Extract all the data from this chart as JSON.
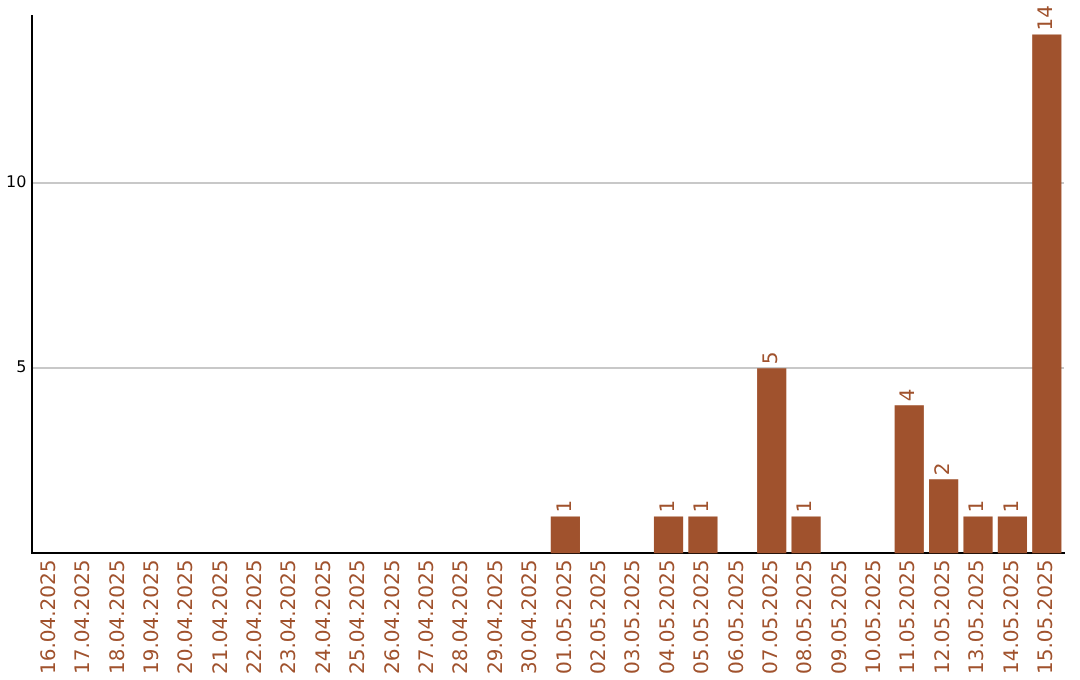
{
  "chart_data": {
    "type": "bar",
    "categories": [
      "16.04.2025",
      "17.04.2025",
      "18.04.2025",
      "19.04.2025",
      "20.04.2025",
      "21.04.2025",
      "22.04.2025",
      "23.04.2025",
      "24.04.2025",
      "25.04.2025",
      "26.04.2025",
      "27.04.2025",
      "28.04.2025",
      "29.04.2025",
      "30.04.2025",
      "01.05.2025",
      "02.05.2025",
      "03.05.2025",
      "04.05.2025",
      "05.05.2025",
      "06.05.2025",
      "07.05.2025",
      "08.05.2025",
      "09.05.2025",
      "10.05.2025",
      "11.05.2025",
      "12.05.2025",
      "13.05.2025",
      "14.05.2025",
      "15.05.2025"
    ],
    "values": [
      0,
      0,
      0,
      0,
      0,
      0,
      0,
      0,
      0,
      0,
      0,
      0,
      0,
      0,
      0,
      1,
      0,
      0,
      1,
      1,
      0,
      5,
      1,
      0,
      0,
      4,
      2,
      1,
      1,
      14
    ],
    "value_labels": [
      null,
      null,
      null,
      null,
      null,
      null,
      null,
      null,
      null,
      null,
      null,
      null,
      null,
      null,
      null,
      "1",
      null,
      null,
      "1",
      "1",
      null,
      "5",
      "1",
      null,
      null,
      "4",
      "2",
      "1",
      "1",
      "14"
    ],
    "color": "#a0522d",
    "ylim": [
      0,
      14.5
    ],
    "yticks": [
      5,
      10
    ],
    "grid": "y"
  }
}
